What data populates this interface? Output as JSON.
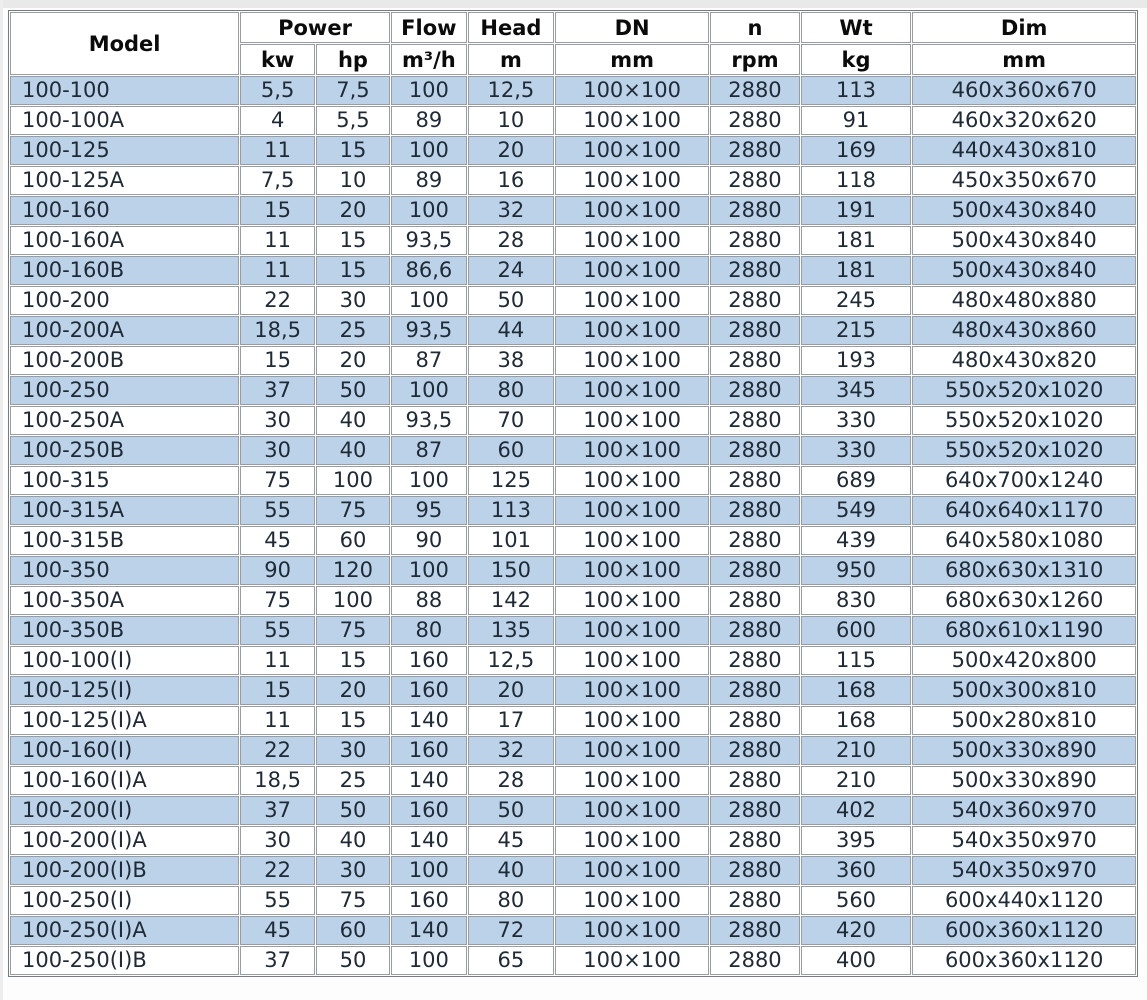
{
  "header": {
    "model": "Model",
    "power": "Power",
    "flow": "Flow",
    "head": "Head",
    "dn": "DN",
    "n": "n",
    "wt": "Wt",
    "dim": "Dim",
    "units": {
      "kw": "kw",
      "hp": "hp",
      "flow": "m³/h",
      "head": "m",
      "dn": "mm",
      "n": "rpm",
      "wt": "kg",
      "dim": "mm"
    }
  },
  "chart_data": {
    "type": "table",
    "columns": [
      "Model",
      "Power kw",
      "Power hp",
      "Flow m³/h",
      "Head m",
      "DN mm",
      "n rpm",
      "Wt kg",
      "Dim mm"
    ],
    "rows": [
      [
        "100-100",
        "5,5",
        "7,5",
        "100",
        "12,5",
        "100×100",
        "2880",
        "113",
        "460x360x670"
      ],
      [
        "100-100A",
        "4",
        "5,5",
        "89",
        "10",
        "100×100",
        "2880",
        "91",
        "460x320x620"
      ],
      [
        "100-125",
        "11",
        "15",
        "100",
        "20",
        "100×100",
        "2880",
        "169",
        "440x430x810"
      ],
      [
        "100-125A",
        "7,5",
        "10",
        "89",
        "16",
        "100×100",
        "2880",
        "118",
        "450x350x670"
      ],
      [
        "100-160",
        "15",
        "20",
        "100",
        "32",
        "100×100",
        "2880",
        "191",
        "500x430x840"
      ],
      [
        "100-160A",
        "11",
        "15",
        "93,5",
        "28",
        "100×100",
        "2880",
        "181",
        "500x430x840"
      ],
      [
        "100-160B",
        "11",
        "15",
        "86,6",
        "24",
        "100×100",
        "2880",
        "181",
        "500x430x840"
      ],
      [
        "100-200",
        "22",
        "30",
        "100",
        "50",
        "100×100",
        "2880",
        "245",
        "480x480x880"
      ],
      [
        "100-200A",
        "18,5",
        "25",
        "93,5",
        "44",
        "100×100",
        "2880",
        "215",
        "480x430x860"
      ],
      [
        "100-200B",
        "15",
        "20",
        "87",
        "38",
        "100×100",
        "2880",
        "193",
        "480x430x820"
      ],
      [
        "100-250",
        "37",
        "50",
        "100",
        "80",
        "100×100",
        "2880",
        "345",
        "550x520x1020"
      ],
      [
        "100-250A",
        "30",
        "40",
        "93,5",
        "70",
        "100×100",
        "2880",
        "330",
        "550x520x1020"
      ],
      [
        "100-250B",
        "30",
        "40",
        "87",
        "60",
        "100×100",
        "2880",
        "330",
        "550x520x1020"
      ],
      [
        "100-315",
        "75",
        "100",
        "100",
        "125",
        "100×100",
        "2880",
        "689",
        "640x700x1240"
      ],
      [
        "100-315A",
        "55",
        "75",
        "95",
        "113",
        "100×100",
        "2880",
        "549",
        "640x640x1170"
      ],
      [
        "100-315B",
        "45",
        "60",
        "90",
        "101",
        "100×100",
        "2880",
        "439",
        "640x580x1080"
      ],
      [
        "100-350",
        "90",
        "120",
        "100",
        "150",
        "100×100",
        "2880",
        "950",
        "680x630x1310"
      ],
      [
        "100-350A",
        "75",
        "100",
        "88",
        "142",
        "100×100",
        "2880",
        "830",
        "680x630x1260"
      ],
      [
        "100-350B",
        "55",
        "75",
        "80",
        "135",
        "100×100",
        "2880",
        "600",
        "680x610x1190"
      ],
      [
        "100-100(I)",
        "11",
        "15",
        "160",
        "12,5",
        "100×100",
        "2880",
        "115",
        "500x420x800"
      ],
      [
        "100-125(I)",
        "15",
        "20",
        "160",
        "20",
        "100×100",
        "2880",
        "168",
        "500x300x810"
      ],
      [
        "100-125(I)A",
        "11",
        "15",
        "140",
        "17",
        "100×100",
        "2880",
        "168",
        "500x280x810"
      ],
      [
        "100-160(I)",
        "22",
        "30",
        "160",
        "32",
        "100×100",
        "2880",
        "210",
        "500x330x890"
      ],
      [
        "100-160(I)A",
        "18,5",
        "25",
        "140",
        "28",
        "100×100",
        "2880",
        "210",
        "500x330x890"
      ],
      [
        "100-200(I)",
        "37",
        "50",
        "160",
        "50",
        "100×100",
        "2880",
        "402",
        "540x360x970"
      ],
      [
        "100-200(I)A",
        "30",
        "40",
        "140",
        "45",
        "100×100",
        "2880",
        "395",
        "540x350x970"
      ],
      [
        "100-200(I)B",
        "22",
        "30",
        "100",
        "40",
        "100×100",
        "2880",
        "360",
        "540x350x970"
      ],
      [
        "100-250(I)",
        "55",
        "75",
        "160",
        "80",
        "100×100",
        "2880",
        "560",
        "600x440x1120"
      ],
      [
        "100-250(I)A",
        "45",
        "60",
        "140",
        "72",
        "100×100",
        "2880",
        "420",
        "600x360x1120"
      ],
      [
        "100-250(I)B",
        "37",
        "50",
        "100",
        "65",
        "100×100",
        "2880",
        "400",
        "600x360x1120"
      ]
    ]
  },
  "colors": {
    "row_alt": "#bcd2e8",
    "row_plain": "#ffffff",
    "border": "#979da3",
    "text": "#1e2a36",
    "header_text": "#0b0b0b"
  }
}
